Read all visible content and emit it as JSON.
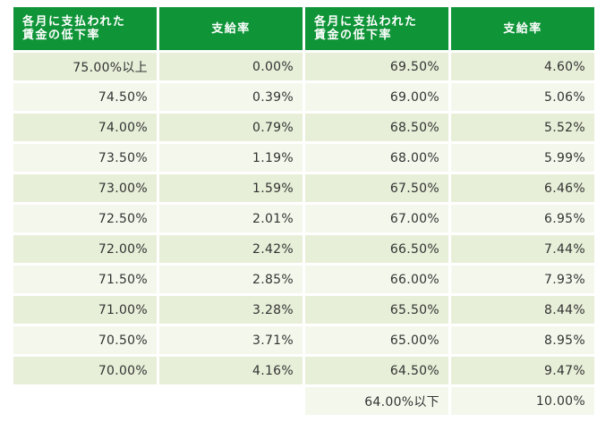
{
  "headers": [
    "各月に支払われた\n賃金の低下率",
    "支給率",
    "各月に支払われた\n賃金の低下率",
    "支給率"
  ],
  "rows": [
    [
      "75.00%以上",
      "0.00%",
      "69.50%",
      "4.60%"
    ],
    [
      "74.50%",
      "0.39%",
      "69.00%",
      "5.06%"
    ],
    [
      "74.00%",
      "0.79%",
      "68.50%",
      "5.52%"
    ],
    [
      "73.50%",
      "1.19%",
      "68.00%",
      "5.99%"
    ],
    [
      "73.00%",
      "1.59%",
      "67.50%",
      "6.46%"
    ],
    [
      "72.50%",
      "2.01%",
      "67.00%",
      "6.95%"
    ],
    [
      "72.00%",
      "2.42%",
      "66.50%",
      "7.44%"
    ],
    [
      "71.50%",
      "2.85%",
      "66.00%",
      "7.93%"
    ],
    [
      "71.00%",
      "3.28%",
      "65.50%",
      "8.44%"
    ],
    [
      "70.50%",
      "3.71%",
      "65.00%",
      "8.95%"
    ],
    [
      "70.00%",
      "4.16%",
      "64.50%",
      "9.47%"
    ]
  ],
  "last_row": [
    "",
    "",
    "64.00%以下",
    "10.00%"
  ],
  "colors": {
    "header_bg": "#0f9438",
    "row_dark": "#e7efd8",
    "row_light": "#f4f8ec"
  }
}
